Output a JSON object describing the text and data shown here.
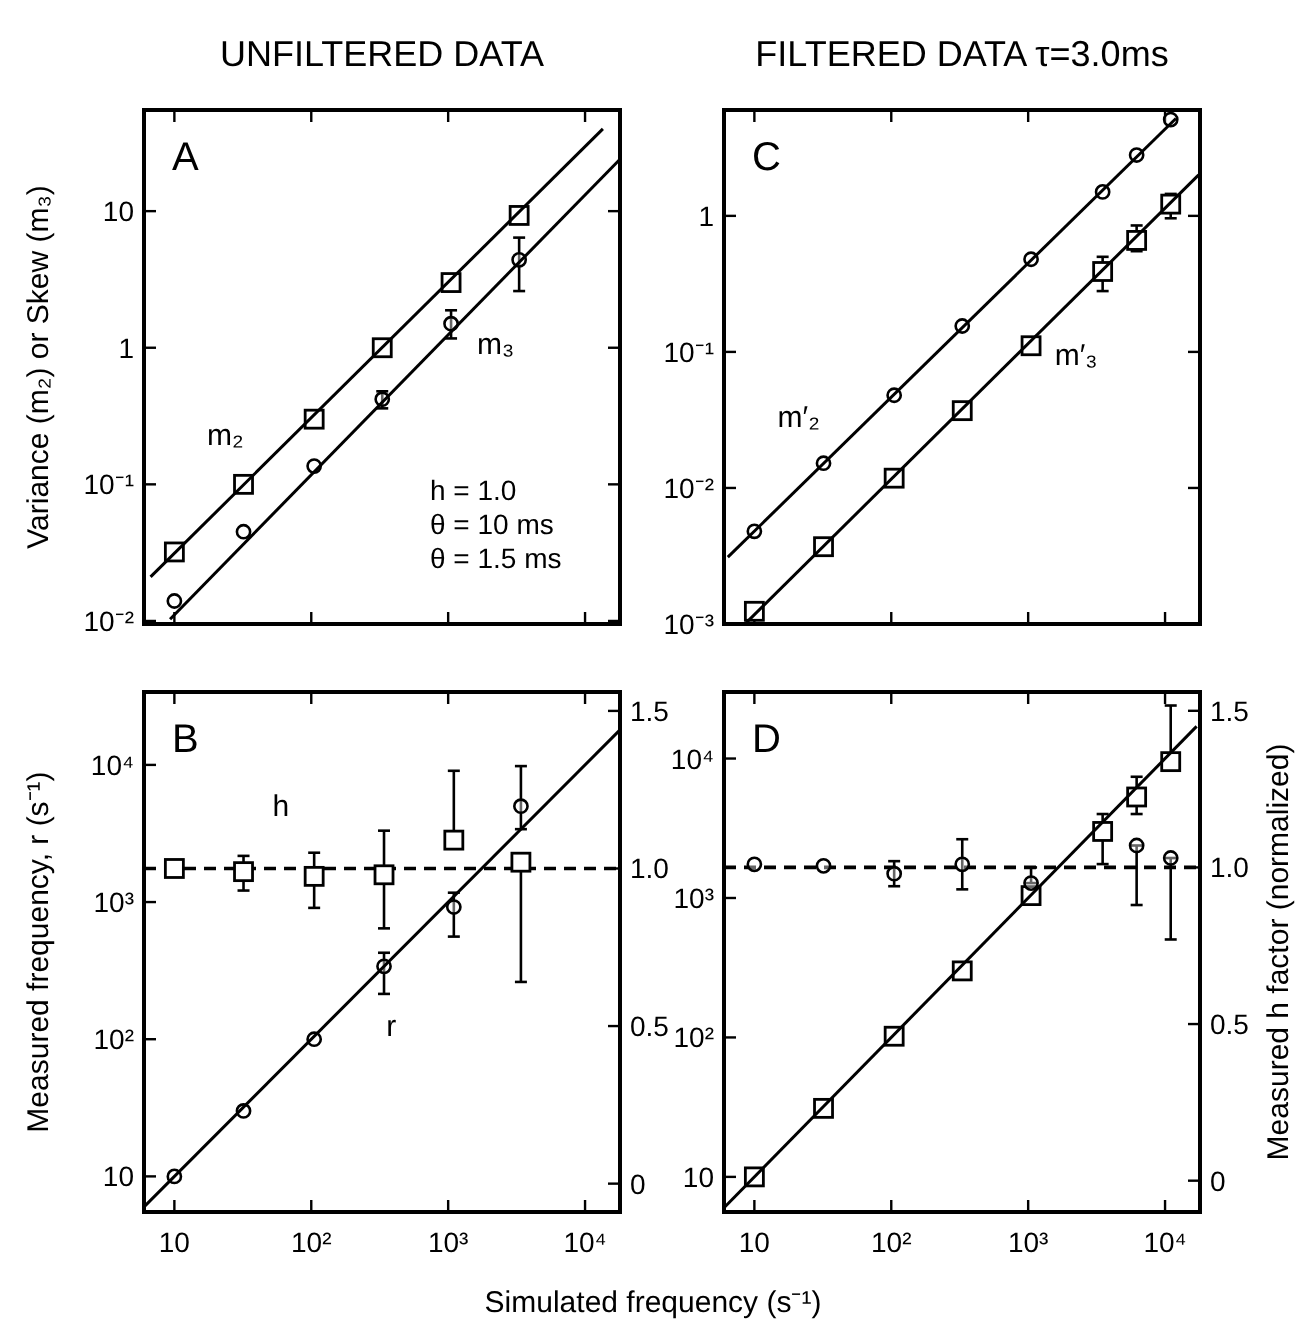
{
  "chart_data": [
    {
      "type": "scatter",
      "title": "UNFILTERED DATA",
      "ylabel": "Variance (m₂) or Skew (m₃)",
      "log": "xy",
      "xlim": [
        6,
        18000
      ],
      "ylim": [
        0.0095,
        55
      ],
      "xticks": [
        {
          "value": 10,
          "label": null
        },
        {
          "value": 100,
          "label": null
        },
        {
          "value": 1000,
          "label": null
        },
        {
          "value": 10000,
          "label": null
        }
      ],
      "yticks": [
        {
          "value": 0.01,
          "label": "10⁻²"
        },
        {
          "value": 0.1,
          "label": "10⁻¹"
        },
        {
          "value": 1,
          "label": "1"
        },
        {
          "value": 10,
          "label": "10"
        }
      ],
      "tick_labels": "y",
      "x": [
        10,
        32,
        105,
        330,
        1050,
        3300
      ],
      "series": [
        {
          "color": "#000000",
          "marker": "square",
          "values": [
            0.032,
            0.1,
            0.3,
            1,
            3,
            9.3
          ]
        },
        {
          "color": "#000000",
          "marker": "circle",
          "values": [
            0.014,
            0.045,
            0.136,
            0.42,
            1.5,
            4.4
          ],
          "errors": [
            null,
            null,
            null,
            [
              0.36,
              0.48
            ],
            [
              1.17,
              1.88
            ],
            [
              2.6,
              6.4
            ]
          ]
        },
        {
          "type": "line",
          "name": "m₂",
          "color": "#000000",
          "x": [
            6.7,
            13500
          ],
          "values": [
            0.021,
            40
          ]
        },
        {
          "type": "line",
          "name": "m₃",
          "color": "#000000",
          "x": [
            9.3,
            18000
          ],
          "values": [
            0.0103,
            24
          ]
        }
      ],
      "annotations": [
        "A",
        "h = 1.0",
        "θ = 10 ms",
        "θ = 1.5 ms"
      ]
    },
    {
      "type": "scatter",
      "title": "FILTERED DATA τ=3.0ms",
      "log": "xy",
      "xlim": [
        6,
        18000
      ],
      "ylim": [
        0.001,
        6
      ],
      "xticks": [
        {
          "value": 10,
          "label": null
        },
        {
          "value": 100,
          "label": null
        },
        {
          "value": 1000,
          "label": null
        },
        {
          "value": 10000,
          "label": null
        }
      ],
      "yticks": [
        {
          "value": 0.001,
          "label": "10⁻³"
        },
        {
          "value": 0.01,
          "label": "10⁻²"
        },
        {
          "value": 0.1,
          "label": "10⁻¹"
        },
        {
          "value": 1,
          "label": "1"
        }
      ],
      "tick_labels": "y",
      "x": [
        10,
        32,
        105,
        330,
        1050,
        3500,
        6200,
        11000
      ],
      "series": [
        {
          "color": "#000000",
          "marker": "circle",
          "values": [
            0.0048,
            0.0152,
            0.048,
            0.155,
            0.48,
            1.5,
            2.8,
            5.1
          ]
        },
        {
          "color": "#000000",
          "marker": "square",
          "values": [
            0.00124,
            0.0037,
            0.0118,
            0.037,
            0.111,
            0.39,
            0.66,
            1.22
          ],
          "errors": [
            null,
            null,
            null,
            null,
            null,
            [
              0.28,
              0.5
            ],
            [
              0.55,
              0.85
            ],
            [
              0.96,
              1.45
            ]
          ]
        },
        {
          "type": "line",
          "name": "m′₂",
          "color": "#000000",
          "x": [
            6.4,
            12000
          ],
          "values": [
            0.0031,
            5.2
          ]
        },
        {
          "type": "line",
          "name": "m′₃",
          "color": "#000000",
          "x": [
            8.7,
            17600
          ],
          "values": [
            0.00102,
            2.0
          ]
        }
      ],
      "annotations": [
        "C"
      ]
    },
    {
      "type": "scatter",
      "ylabel": "Measured frequency, r (s⁻¹)",
      "xlabel": "Simulated frequency (s⁻¹)",
      "log": "xy",
      "xlim": [
        6,
        18000
      ],
      "ylim": [
        5.5,
        34000
      ],
      "y2lim": [
        -0.09,
        1.56
      ],
      "xticks": [
        {
          "value": 10,
          "label": "10"
        },
        {
          "value": 100,
          "label": "10²"
        },
        {
          "value": 1000,
          "label": "10³"
        },
        {
          "value": 10000,
          "label": "10⁴"
        }
      ],
      "yticks": [
        {
          "value": 10,
          "label": "10"
        },
        {
          "value": 100,
          "label": "10²"
        },
        {
          "value": 1000,
          "label": "10³"
        },
        {
          "value": 10000,
          "label": "10⁴"
        }
      ],
      "y2ticks": [
        {
          "value": 0,
          "label": "0"
        },
        {
          "value": 0.5,
          "label": "0.5"
        },
        {
          "value": 1,
          "label": "1.0"
        },
        {
          "value": 1.5,
          "label": "1.5"
        }
      ],
      "x": [
        10,
        32,
        105,
        340,
        1100,
        3400
      ],
      "series": [
        {
          "color": "#000000",
          "marker": "circle",
          "values": [
            10,
            30,
            100,
            340,
            920,
            5000
          ],
          "errors": [
            null,
            null,
            null,
            [
              214,
              427
            ],
            [
              560,
              1170
            ],
            [
              3400,
              9800
            ]
          ]
        },
        {
          "color": "#000000",
          "marker": "square",
          "axis": "y2",
          "values": [
            1.0,
            0.99,
            0.975,
            0.98,
            1.09,
            1.02
          ],
          "errors": [
            null,
            [
              0.93,
              1.04
            ],
            [
              0.875,
              1.05
            ],
            [
              0.81,
              1.12
            ],
            [
              1.09,
              1.31
            ],
            [
              0.64,
              1.02
            ]
          ]
        },
        {
          "type": "line",
          "name": "r",
          "color": "#000000",
          "x": [
            6,
            18000
          ],
          "values": [
            6,
            18000
          ]
        }
      ],
      "ref_lines": [
        {
          "axis": "y2",
          "value": 1.0,
          "label": "h",
          "line_style": "dashed"
        }
      ],
      "annotations": [
        "B"
      ]
    },
    {
      "type": "scatter",
      "y2label": "Measured h factor (normalized)",
      "log": "xy",
      "xlim": [
        6,
        18000
      ],
      "ylim": [
        5.6,
        30000
      ],
      "y2lim": [
        -0.1,
        1.56
      ],
      "xticks": [
        {
          "value": 10,
          "label": "10"
        },
        {
          "value": 100,
          "label": "10²"
        },
        {
          "value": 1000,
          "label": "10³"
        },
        {
          "value": 10000,
          "label": "10⁴"
        }
      ],
      "yticks": [
        {
          "value": 10,
          "label": "10"
        },
        {
          "value": 100,
          "label": "10²"
        },
        {
          "value": 1000,
          "label": "10³"
        },
        {
          "value": 10000,
          "label": "10⁴"
        }
      ],
      "y2ticks": [
        {
          "value": 0,
          "label": "0"
        },
        {
          "value": 0.5,
          "label": "0.5"
        },
        {
          "value": 1,
          "label": "1.0"
        },
        {
          "value": 1.5,
          "label": "1.5"
        }
      ],
      "x": [
        10,
        32,
        105,
        330,
        1050,
        3500,
        6200,
        11000
      ],
      "series": [
        {
          "color": "#000000",
          "marker": "square",
          "values": [
            10,
            31,
            102,
            300,
            1040,
            3000,
            5300,
            9500
          ],
          "errors": [
            null,
            null,
            null,
            null,
            null,
            [
              1750,
              4000
            ],
            [
              4000,
              7400
            ],
            [
              9500,
              24000
            ]
          ]
        },
        {
          "color": "#000000",
          "marker": "circle",
          "axis": "y2",
          "values": [
            1.01,
            1.005,
            0.98,
            1.01,
            0.95,
            null,
            1.07,
            1.03
          ],
          "errors": [
            null,
            null,
            [
              0.94,
              1.02
            ],
            [
              0.93,
              1.09
            ],
            [
              0.95,
              1.0
            ],
            null,
            [
              0.88,
              1.07
            ],
            [
              0.77,
              1.03
            ]
          ]
        },
        {
          "type": "line",
          "color": "#000000",
          "x": [
            6,
            17000
          ],
          "values": [
            6,
            17000
          ]
        }
      ],
      "ref_lines": [
        {
          "axis": "y2",
          "value": 1.0,
          "line_style": "dashed"
        }
      ],
      "annotations": [
        "D"
      ]
    }
  ]
}
